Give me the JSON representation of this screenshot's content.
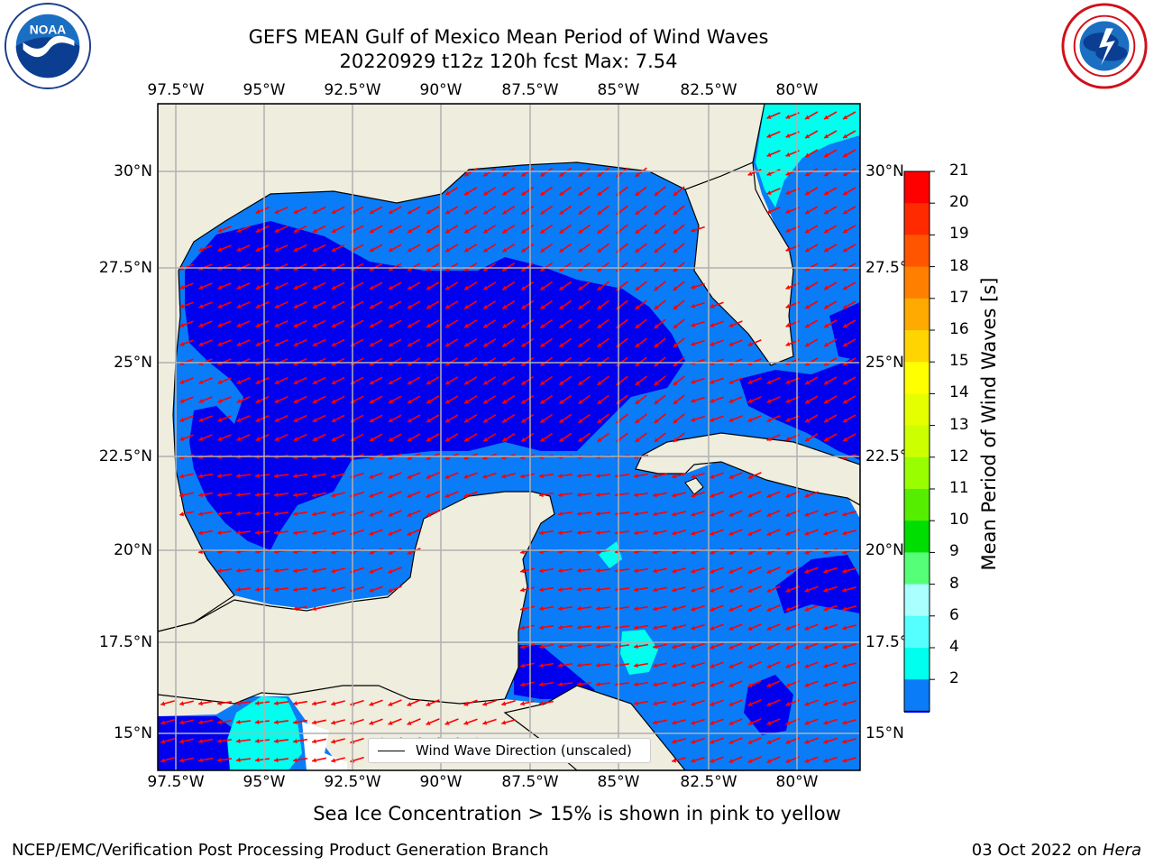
{
  "title": {
    "line1": "GEFS MEAN Gulf of Mexico Mean Period of Wind Waves",
    "line2": "20220929 t12z 120h fcst   Max: 7.54"
  },
  "logos": {
    "noaa": {
      "text": "NOAA",
      "ring": "NATIONAL OCEANIC AND ATMOSPHERIC ADMINISTRATION · U.S. DEPARTMENT OF COMMERCE"
    },
    "nws": {
      "ring": "NATIONAL WEATHER SERVICE"
    }
  },
  "map": {
    "x_ticks": [
      "97.5°W",
      "95°W",
      "92.5°W",
      "90°W",
      "87.5°W",
      "85°W",
      "82.5°W",
      "80°W"
    ],
    "y_ticks": [
      "30°N",
      "27.5°N",
      "25°N",
      "22.5°N",
      "20°N",
      "17.5°N",
      "15°N"
    ],
    "legend_label": "Wind Wave Direction (unscaled)",
    "colors": {
      "land": "#efedde",
      "sea_2_4": "#0a7cf7",
      "sea_lt2": "#0000ee",
      "sea_4_6": "#00ffee",
      "arrow": "#ff0000",
      "grid": "#b0b0b0"
    }
  },
  "colorbar": {
    "label": "Mean Period of Wind Waves [s]",
    "ticks": [
      "21",
      "20",
      "19",
      "18",
      "17",
      "16",
      "15",
      "14",
      "13",
      "12",
      "11",
      "10",
      "9",
      "8",
      "6",
      "4",
      "2"
    ],
    "colors": [
      "#ff0000",
      "#ff2a00",
      "#ff5500",
      "#ff8000",
      "#ffaa00",
      "#ffd400",
      "#ffff00",
      "#e6ff00",
      "#ccff00",
      "#99ff00",
      "#55ee00",
      "#00dd00",
      "#55ff77",
      "#aaffff",
      "#55ffff",
      "#00ffee",
      "#0a7cf7"
    ]
  },
  "notes": {
    "sea_ice": "Sea Ice Concentration > 15% is shown in pink to yellow"
  },
  "footer": {
    "left": "NCEP/EMC/Verification Post Processing Product Generation Branch",
    "date": "03 Oct 2022 on ",
    "host": "Hera"
  }
}
